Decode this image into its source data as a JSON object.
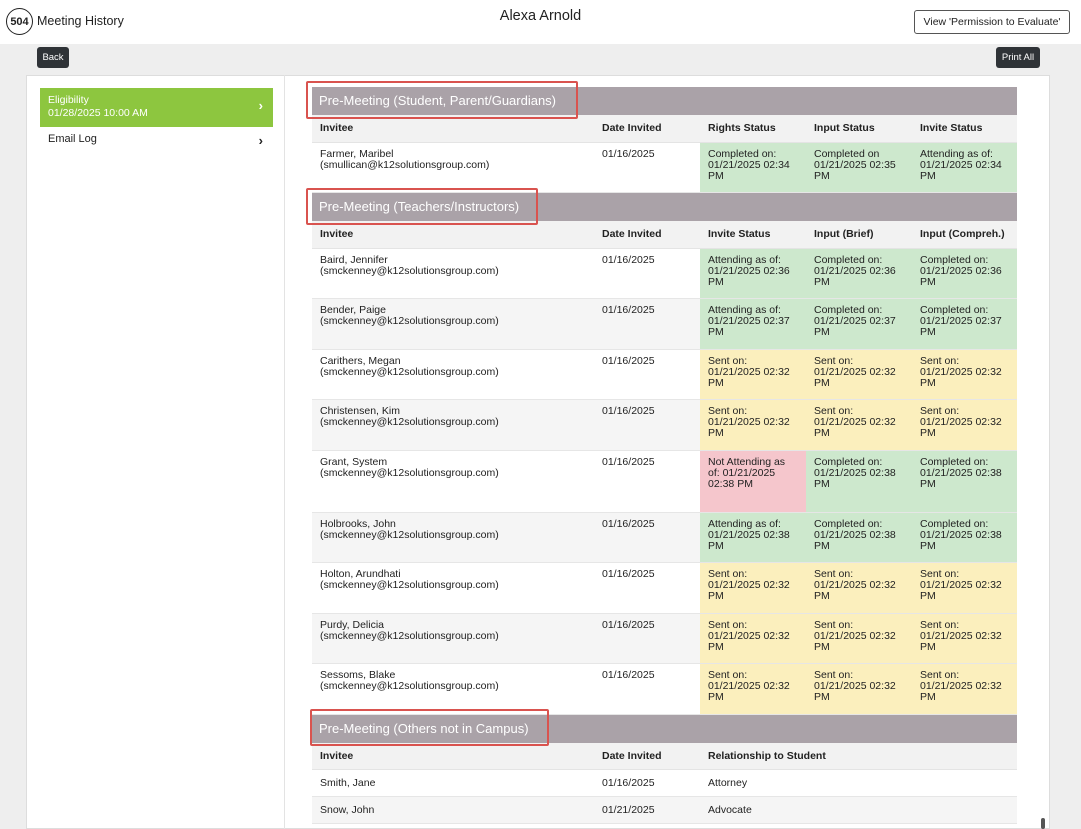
{
  "header": {
    "logo": "504",
    "app_title": "Meeting History",
    "student_name": "Alexa Arnold",
    "permission_button": "View 'Permission to Evaluate'"
  },
  "toolbar": {
    "back_label": "Back",
    "print_all_label": "Print All"
  },
  "sidebar": {
    "items": [
      {
        "label": "Eligibility",
        "sub": "01/28/2025 10:00 AM",
        "active": true
      },
      {
        "label": "Email Log",
        "active": false
      }
    ]
  },
  "sections": [
    {
      "title": "Pre-Meeting (Student, Parent/Guardians)",
      "columns": [
        "Invitee",
        "Date Invited",
        "Rights Status",
        "Input Status",
        "Invite Status"
      ],
      "rows": [
        {
          "name": "Farmer, Maribel",
          "email": "(smullican@k12solutionsgroup.com)",
          "date": "01/16/2025",
          "cells": [
            {
              "text": "Completed on: 01/21/2025 02:34 PM",
              "status": "green"
            },
            {
              "text": "Completed on 01/21/2025 02:35 PM",
              "status": "green"
            },
            {
              "text": "Attending as of: 01/21/2025 02:34 PM",
              "status": "green"
            }
          ]
        }
      ]
    },
    {
      "title": "Pre-Meeting (Teachers/Instructors)",
      "columns": [
        "Invitee",
        "Date Invited",
        "Invite Status",
        "Input (Brief)",
        "Input (Compreh.)"
      ],
      "rows": [
        {
          "name": "Baird, Jennifer",
          "email": "(smckenney@k12solutionsgroup.com)",
          "date": "01/16/2025",
          "cells": [
            {
              "text": "Attending as of: 01/21/2025 02:36 PM",
              "status": "green"
            },
            {
              "text": "Completed on: 01/21/2025 02:36 PM",
              "status": "green"
            },
            {
              "text": "Completed on: 01/21/2025 02:36 PM",
              "status": "green"
            }
          ]
        },
        {
          "name": "Bender, Paige",
          "email": "(smckenney@k12solutionsgroup.com)",
          "date": "01/16/2025",
          "cells": [
            {
              "text": "Attending as of: 01/21/2025 02:37 PM",
              "status": "green"
            },
            {
              "text": "Completed on: 01/21/2025 02:37 PM",
              "status": "green"
            },
            {
              "text": "Completed on: 01/21/2025 02:37 PM",
              "status": "green"
            }
          ]
        },
        {
          "name": "Carithers, Megan",
          "email": "(smckenney@k12solutionsgroup.com)",
          "date": "01/16/2025",
          "cells": [
            {
              "text": "Sent on: 01/21/2025 02:32 PM",
              "status": "yellow"
            },
            {
              "text": "Sent on: 01/21/2025 02:32 PM",
              "status": "yellow"
            },
            {
              "text": "Sent on: 01/21/2025 02:32 PM",
              "status": "yellow"
            }
          ]
        },
        {
          "name": "Christensen, Kim",
          "email": "(smckenney@k12solutionsgroup.com)",
          "date": "01/16/2025",
          "cells": [
            {
              "text": "Sent on: 01/21/2025 02:32 PM",
              "status": "yellow"
            },
            {
              "text": "Sent on: 01/21/2025 02:32 PM",
              "status": "yellow"
            },
            {
              "text": "Sent on: 01/21/2025 02:32 PM",
              "status": "yellow"
            }
          ]
        },
        {
          "name": "Grant, System",
          "email": "(smckenney@k12solutionsgroup.com)",
          "date": "01/16/2025",
          "cells": [
            {
              "text": "Not Attending as of: 01/21/2025 02:38 PM",
              "status": "pink"
            },
            {
              "text": "Completed on: 01/21/2025 02:38 PM",
              "status": "green"
            },
            {
              "text": "Completed on: 01/21/2025 02:38 PM",
              "status": "green"
            }
          ]
        },
        {
          "name": "Holbrooks, John",
          "email": "(smckenney@k12solutionsgroup.com)",
          "date": "01/16/2025",
          "cells": [
            {
              "text": "Attending as of: 01/21/2025 02:38 PM",
              "status": "green"
            },
            {
              "text": "Completed on: 01/21/2025 02:38 PM",
              "status": "green"
            },
            {
              "text": "Completed on: 01/21/2025 02:38 PM",
              "status": "green"
            }
          ]
        },
        {
          "name": "Holton, Arundhati",
          "email": "(smckenney@k12solutionsgroup.com)",
          "date": "01/16/2025",
          "cells": [
            {
              "text": "Sent on: 01/21/2025 02:32 PM",
              "status": "yellow"
            },
            {
              "text": "Sent on: 01/21/2025 02:32 PM",
              "status": "yellow"
            },
            {
              "text": "Sent on: 01/21/2025 02:32 PM",
              "status": "yellow"
            }
          ]
        },
        {
          "name": "Purdy, Delicia",
          "email": "(smckenney@k12solutionsgroup.com)",
          "date": "01/16/2025",
          "cells": [
            {
              "text": "Sent on: 01/21/2025 02:32 PM",
              "status": "yellow"
            },
            {
              "text": "Sent on: 01/21/2025 02:32 PM",
              "status": "yellow"
            },
            {
              "text": "Sent on: 01/21/2025 02:32 PM",
              "status": "yellow"
            }
          ]
        },
        {
          "name": "Sessoms, Blake",
          "email": "(smckenney@k12solutionsgroup.com)",
          "date": "01/16/2025",
          "cells": [
            {
              "text": "Sent on: 01/21/2025 02:32 PM",
              "status": "yellow"
            },
            {
              "text": "Sent on: 01/21/2025 02:32 PM",
              "status": "yellow"
            },
            {
              "text": "Sent on: 01/21/2025 02:32 PM",
              "status": "yellow"
            }
          ]
        }
      ]
    },
    {
      "title": "Pre-Meeting (Others not in Campus)",
      "columns": [
        "Invitee",
        "Date Invited",
        "Relationship to Student"
      ],
      "rows": [
        {
          "name": "Smith, Jane",
          "date": "01/16/2025",
          "relationship": "Attorney"
        },
        {
          "name": "Snow, John",
          "date": "01/21/2025",
          "relationship": "Advocate"
        }
      ]
    }
  ],
  "colors": {
    "accent_green": "#8dc63f",
    "status_green": "#cde8cd",
    "status_yellow": "#fbefbd",
    "status_pink": "#f5c6cc",
    "section_header": "#aaa2a8",
    "highlight_red": "#d9534f"
  }
}
